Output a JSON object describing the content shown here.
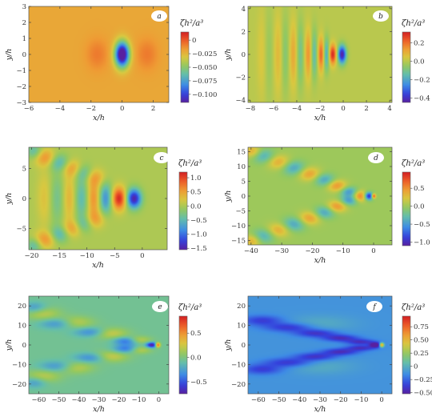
{
  "chart_data": [
    {
      "type": "heatmap",
      "panel": "a",
      "xlabel": "x/h",
      "ylabel": "y/h",
      "colorbar_label": "ζh²/a³",
      "xlim": [
        -6,
        3
      ],
      "ylim": [
        -3,
        3
      ],
      "xticks": [
        -6,
        -4,
        -2,
        0,
        2
      ],
      "yticks": [
        -3,
        -2,
        -1,
        0,
        1,
        2,
        3
      ],
      "clim": [
        -0.115,
        0.015
      ],
      "cbar_ticks": [
        {
          "v": 0,
          "t": "0"
        },
        {
          "v": -0.025,
          "t": "−0.025"
        },
        {
          "v": -0.05,
          "t": "−0.050"
        },
        {
          "v": -0.075,
          "t": "−0.075"
        },
        {
          "v": -0.1,
          "t": "−0.100"
        }
      ],
      "background": -0.02,
      "features": [
        {
          "x": -1.6,
          "y": 0,
          "v": 0.012,
          "sx": 0.5,
          "sy": 0.7
        },
        {
          "x": 1.6,
          "y": 0,
          "v": 0.012,
          "sx": 0.5,
          "sy": 0.7
        },
        {
          "x": 0,
          "y": 0,
          "v": -0.112,
          "sx": 0.32,
          "sy": 0.55
        }
      ]
    },
    {
      "type": "heatmap",
      "panel": "b",
      "xlabel": "x/h",
      "ylabel": "y/h",
      "colorbar_label": "ζh²/a³",
      "xlim": [
        -8.2,
        4.2
      ],
      "ylim": [
        -4.2,
        4.2
      ],
      "xticks": [
        -8,
        -6,
        -4,
        -2,
        0,
        2,
        4
      ],
      "yticks": [
        -4,
        -2,
        0,
        2,
        4
      ],
      "clim": [
        -0.45,
        0.32
      ],
      "cbar_ticks": [
        {
          "v": 0.2,
          "t": "0.2"
        },
        {
          "v": 0,
          "t": "0.0"
        },
        {
          "v": -0.2,
          "t": "−0.2"
        },
        {
          "v": -0.4,
          "t": "−0.4"
        }
      ],
      "background": 0,
      "features": [
        {
          "x": -0.9,
          "y": 0,
          "v": 0.3,
          "sx": 0.22,
          "sy": 0.6
        },
        {
          "x": -0.1,
          "y": 0,
          "v": -0.44,
          "sx": 0.25,
          "sy": 0.55
        },
        {
          "x": -1.9,
          "y": 0,
          "v": 0.22,
          "sx": 0.2,
          "sy": 1.0
        },
        {
          "x": -1.45,
          "y": 0,
          "v": -0.2,
          "sx": 0.18,
          "sy": 1.0
        },
        {
          "x": -3.0,
          "y": 0,
          "v": 0.15,
          "sx": 0.22,
          "sy": 1.5
        },
        {
          "x": -2.5,
          "y": 0,
          "v": -0.15,
          "sx": 0.2,
          "sy": 1.5
        },
        {
          "x": -4.3,
          "y": 0,
          "v": 0.11,
          "sx": 0.25,
          "sy": 2.0
        },
        {
          "x": -3.7,
          "y": 0,
          "v": -0.11,
          "sx": 0.22,
          "sy": 2.0
        },
        {
          "x": -5.6,
          "y": 0,
          "v": 0.08,
          "sx": 0.28,
          "sy": 2.4
        },
        {
          "x": -5.0,
          "y": 0,
          "v": -0.08,
          "sx": 0.25,
          "sy": 2.4
        },
        {
          "x": -7.0,
          "y": 0,
          "v": 0.05,
          "sx": 0.3,
          "sy": 2.8
        },
        {
          "x": -6.4,
          "y": 0,
          "v": -0.05,
          "sx": 0.28,
          "sy": 2.8
        }
      ]
    },
    {
      "type": "heatmap",
      "panel": "c",
      "xlabel": "x/h",
      "ylabel": "y/h",
      "colorbar_label": "ζh²/a³",
      "xlim": [
        -20.5,
        4.5
      ],
      "ylim": [
        -8.5,
        8.5
      ],
      "xticks": [
        -20,
        -15,
        -10,
        -5,
        0
      ],
      "yticks": [
        -5,
        0,
        5
      ],
      "clim": [
        -1.55,
        1.2
      ],
      "cbar_ticks": [
        {
          "v": 1,
          "t": "1.0"
        },
        {
          "v": 0.5,
          "t": "0.5"
        },
        {
          "v": 0,
          "t": "0.0"
        },
        {
          "v": -0.5,
          "t": "−0.5"
        },
        {
          "v": -1,
          "t": "−1.0"
        },
        {
          "v": -1.5,
          "t": "−1.5"
        }
      ],
      "background": 0,
      "features": [
        {
          "x": -1.5,
          "y": 0,
          "v": -1.5,
          "sx": 0.9,
          "sy": 1.1
        },
        {
          "x": -4.2,
          "y": 0,
          "v": 1.15,
          "sx": 0.9,
          "sy": 1.3
        },
        {
          "x": -6.6,
          "y": 0,
          "v": -0.8,
          "sx": 0.8,
          "sy": 1.8
        },
        {
          "x": -8.8,
          "y": 0,
          "v": 0.6,
          "sx": 0.8,
          "sy": 2.2
        },
        {
          "x": -11.0,
          "y": 0,
          "v": -0.5,
          "sx": 0.9,
          "sy": 2.6
        },
        {
          "x": -13.2,
          "y": 0,
          "v": 0.4,
          "sx": 0.9,
          "sy": 3.0
        },
        {
          "x": -15.4,
          "y": 0,
          "v": -0.35,
          "sx": 1.0,
          "sy": 3.2
        },
        {
          "x": -17.6,
          "y": 0,
          "v": 0.28,
          "sx": 1.0,
          "sy": 3.4
        },
        {
          "x": -8.5,
          "y": 3.5,
          "v": 0.45,
          "sx": 1.3,
          "sy": 1.0
        },
        {
          "x": -8.5,
          "y": -3.5,
          "v": 0.45,
          "sx": 1.3,
          "sy": 1.0
        },
        {
          "x": -12.5,
          "y": 5.0,
          "v": 0.5,
          "sx": 1.3,
          "sy": 1.0
        },
        {
          "x": -12.5,
          "y": -5.0,
          "v": 0.5,
          "sx": 1.3,
          "sy": 1.0
        },
        {
          "x": -17.5,
          "y": 6.8,
          "v": 0.6,
          "sx": 1.4,
          "sy": 1.0
        },
        {
          "x": -17.5,
          "y": -6.8,
          "v": 0.6,
          "sx": 1.4,
          "sy": 1.0
        },
        {
          "x": -15.0,
          "y": 6.0,
          "v": -0.55,
          "sx": 1.3,
          "sy": 1.0
        },
        {
          "x": -15.0,
          "y": -6.0,
          "v": -0.55,
          "sx": 1.3,
          "sy": 1.0
        },
        {
          "x": -10.5,
          "y": 4.3,
          "v": -0.45,
          "sx": 1.2,
          "sy": 1.0
        },
        {
          "x": -10.5,
          "y": -4.3,
          "v": -0.45,
          "sx": 1.2,
          "sy": 1.0
        },
        {
          "x": -19.5,
          "y": 7.8,
          "v": -0.5,
          "sx": 1.0,
          "sy": 0.9
        },
        {
          "x": -19.5,
          "y": -7.8,
          "v": -0.5,
          "sx": 1.0,
          "sy": 0.9
        }
      ]
    },
    {
      "type": "heatmap",
      "panel": "d",
      "xlabel": "x/h",
      "ylabel": "y/h",
      "colorbar_label": "ζh²/a³",
      "xlim": [
        -41,
        6
      ],
      "ylim": [
        -16.5,
        16.5
      ],
      "xticks": [
        -40,
        -30,
        -20,
        -10,
        0
      ],
      "yticks": [
        -15,
        -10,
        -5,
        0,
        5,
        10,
        15
      ],
      "clim": [
        -1.1,
        0.95
      ],
      "cbar_ticks": [
        {
          "v": 0.5,
          "t": "0.5"
        },
        {
          "v": 0,
          "t": "0.0"
        },
        {
          "v": -0.5,
          "t": "−0.5"
        },
        {
          "v": -1,
          "t": "−1.0"
        }
      ],
      "background": 0,
      "features": [
        {
          "x": 0,
          "y": 0,
          "v": 0.9,
          "sx": 0.5,
          "sy": 0.6
        },
        {
          "x": -1.5,
          "y": 0,
          "v": -1.0,
          "sx": 1.0,
          "sy": 0.9
        },
        {
          "x": -4.5,
          "y": 0,
          "v": 0.6,
          "sx": 1.5,
          "sy": 1.3
        },
        {
          "x": -8.0,
          "y": 1.5,
          "v": -0.5,
          "sx": 2.0,
          "sy": 1.2
        },
        {
          "x": -8.0,
          "y": -1.5,
          "v": -0.5,
          "sx": 2.0,
          "sy": 1.2
        },
        {
          "x": -12,
          "y": 3.5,
          "v": 0.5,
          "sx": 2.2,
          "sy": 1.4
        },
        {
          "x": -12,
          "y": -3.5,
          "v": 0.5,
          "sx": 2.2,
          "sy": 1.4
        },
        {
          "x": -16,
          "y": 5.5,
          "v": -0.45,
          "sx": 2.3,
          "sy": 1.5
        },
        {
          "x": -16,
          "y": -5.5,
          "v": -0.45,
          "sx": 2.3,
          "sy": 1.5
        },
        {
          "x": -21,
          "y": 7.5,
          "v": 0.45,
          "sx": 2.5,
          "sy": 1.6
        },
        {
          "x": -21,
          "y": -7.5,
          "v": 0.45,
          "sx": 2.5,
          "sy": 1.6
        },
        {
          "x": -26,
          "y": 9.5,
          "v": -0.45,
          "sx": 2.6,
          "sy": 1.7
        },
        {
          "x": -26,
          "y": -9.5,
          "v": -0.45,
          "sx": 2.6,
          "sy": 1.7
        },
        {
          "x": -31,
          "y": 11.5,
          "v": 0.4,
          "sx": 2.6,
          "sy": 1.7
        },
        {
          "x": -31,
          "y": -11.5,
          "v": 0.4,
          "sx": 2.6,
          "sy": 1.7
        },
        {
          "x": -36,
          "y": 13.5,
          "v": -0.4,
          "sx": 2.6,
          "sy": 1.7
        },
        {
          "x": -36,
          "y": -13.5,
          "v": -0.4,
          "sx": 2.6,
          "sy": 1.7
        },
        {
          "x": -39.5,
          "y": 15,
          "v": 0.4,
          "sx": 2.0,
          "sy": 1.5
        },
        {
          "x": -39.5,
          "y": -15,
          "v": 0.4,
          "sx": 2.0,
          "sy": 1.5
        }
      ]
    },
    {
      "type": "heatmap",
      "panel": "e",
      "xlabel": "x/h",
      "ylabel": "y/h",
      "colorbar_label": "ζh²/a³",
      "xlim": [
        -65,
        5
      ],
      "ylim": [
        -25,
        25
      ],
      "xticks": [
        -60,
        -50,
        -40,
        -30,
        -20,
        -10,
        0
      ],
      "yticks": [
        -20,
        -10,
        0,
        10,
        20
      ],
      "clim": [
        -0.75,
        0.85
      ],
      "cbar_ticks": [
        {
          "v": 0.5,
          "t": "0.5"
        },
        {
          "v": 0,
          "t": "0.0"
        },
        {
          "v": -0.5,
          "t": "−0.5"
        }
      ],
      "background": -0.05,
      "features": [
        {
          "x": -0.5,
          "y": 0,
          "v": 0.8,
          "sx": 0.9,
          "sy": 0.9
        },
        {
          "x": -3.5,
          "y": 0,
          "v": -0.7,
          "sx": 2.0,
          "sy": 1.0
        },
        {
          "x": -10,
          "y": 2.5,
          "v": 0.3,
          "sx": 4.0,
          "sy": 1.4
        },
        {
          "x": -10,
          "y": -2.5,
          "v": 0.3,
          "sx": 4.0,
          "sy": 1.4
        },
        {
          "x": -16,
          "y": 2.0,
          "v": -0.4,
          "sx": 4.5,
          "sy": 1.5
        },
        {
          "x": -16,
          "y": -2.0,
          "v": -0.4,
          "sx": 4.5,
          "sy": 1.5
        },
        {
          "x": -25,
          "y": 6.0,
          "v": 0.35,
          "sx": 6.0,
          "sy": 2.0
        },
        {
          "x": -25,
          "y": -6.0,
          "v": 0.35,
          "sx": 6.0,
          "sy": 2.0
        },
        {
          "x": -33,
          "y": 6.5,
          "v": -0.35,
          "sx": 6.0,
          "sy": 1.8
        },
        {
          "x": -33,
          "y": -6.5,
          "v": -0.35,
          "sx": 6.0,
          "sy": 1.8
        },
        {
          "x": -42,
          "y": 11.5,
          "v": 0.3,
          "sx": 6.0,
          "sy": 2.2
        },
        {
          "x": -42,
          "y": -11.5,
          "v": 0.3,
          "sx": 6.0,
          "sy": 2.2
        },
        {
          "x": -50,
          "y": 11,
          "v": -0.3,
          "sx": 6.5,
          "sy": 2.0
        },
        {
          "x": -50,
          "y": -11,
          "v": -0.3,
          "sx": 6.5,
          "sy": 2.0
        },
        {
          "x": -58,
          "y": 16,
          "v": 0.25,
          "sx": 6.0,
          "sy": 2.4
        },
        {
          "x": -58,
          "y": -16,
          "v": 0.25,
          "sx": 6.0,
          "sy": 2.4
        },
        {
          "x": -62,
          "y": 19,
          "v": -0.25,
          "sx": 4.0,
          "sy": 2.0
        },
        {
          "x": -62,
          "y": -19,
          "v": -0.25,
          "sx": 4.0,
          "sy": 2.0
        }
      ]
    },
    {
      "type": "heatmap",
      "panel": "f",
      "xlabel": "x/h",
      "ylabel": "y/h",
      "colorbar_label": "ζh²/a³",
      "xlim": [
        -65,
        5
      ],
      "ylim": [
        -25,
        25
      ],
      "xticks": [
        -60,
        -50,
        -40,
        -30,
        -20,
        -10,
        0
      ],
      "yticks": [
        -20,
        -10,
        0,
        10,
        20
      ],
      "clim": [
        -0.52,
        0.95
      ],
      "cbar_ticks": [
        {
          "v": 0.75,
          "t": "0.75"
        },
        {
          "v": 0.5,
          "t": "0.50"
        },
        {
          "v": 0.25,
          "t": "0.25"
        },
        {
          "v": 0,
          "t": "0"
        },
        {
          "v": -0.25,
          "t": "−0.25"
        },
        {
          "v": -0.5,
          "t": "−0.50"
        }
      ],
      "background": -0.12,
      "features": [
        {
          "x": 0,
          "y": 0,
          "v": 0.85,
          "sx": 0.8,
          "sy": 0.8
        },
        {
          "x": -3,
          "y": 0,
          "v": -0.5,
          "sx": 2.0,
          "sy": 0.9
        },
        {
          "x": -10,
          "y": 1.5,
          "v": -0.3,
          "sx": 5.0,
          "sy": 1.0
        },
        {
          "x": -10,
          "y": -1.5,
          "v": -0.3,
          "sx": 5.0,
          "sy": 1.0
        },
        {
          "x": -20,
          "y": 3.5,
          "v": -0.32,
          "sx": 6.0,
          "sy": 1.2
        },
        {
          "x": -20,
          "y": -3.5,
          "v": -0.32,
          "sx": 6.0,
          "sy": 1.2
        },
        {
          "x": -32,
          "y": 6.0,
          "v": -0.3,
          "sx": 7.0,
          "sy": 1.4
        },
        {
          "x": -32,
          "y": -6.0,
          "v": -0.3,
          "sx": 7.0,
          "sy": 1.4
        },
        {
          "x": -45,
          "y": 9.0,
          "v": -0.28,
          "sx": 8.0,
          "sy": 1.6
        },
        {
          "x": -45,
          "y": -9.0,
          "v": -0.28,
          "sx": 8.0,
          "sy": 1.6
        },
        {
          "x": -58,
          "y": 12.5,
          "v": -0.25,
          "sx": 7.0,
          "sy": 1.8
        },
        {
          "x": -58,
          "y": -12.5,
          "v": -0.25,
          "sx": 7.0,
          "sy": 1.8
        },
        {
          "x": -30,
          "y": 11.0,
          "v": 0.1,
          "sx": 12.0,
          "sy": 3.0
        },
        {
          "x": -30,
          "y": -11.0,
          "v": 0.1,
          "sx": 12.0,
          "sy": 3.0
        }
      ]
    }
  ]
}
